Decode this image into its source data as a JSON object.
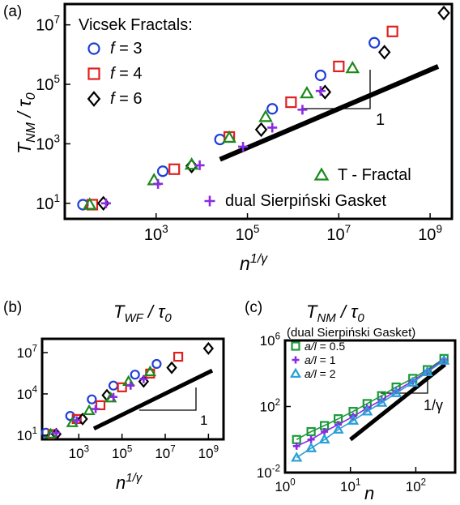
{
  "chart_data": [
    {
      "panel": "(a)",
      "type": "scatter",
      "xscale": "log",
      "yscale": "log",
      "xlim": [
        10,
        3000000000.0
      ],
      "ylim": [
        3,
        50000000.0
      ],
      "xlabel": "n^1/γ",
      "ylabel": "T_NM / τ_0",
      "xticks": [
        1000,
        100000,
        10000000,
        1000000000
      ],
      "xtick_labels": [
        "10^3",
        "10^5",
        "10^7",
        "10^9"
      ],
      "yticks": [
        10,
        1000,
        100000,
        10000000
      ],
      "ytick_labels": [
        "10^1",
        "10^3",
        "10^5",
        "10^7"
      ],
      "legend_title": "Vicsek Fractals:",
      "series": [
        {
          "name": "f = 3",
          "marker": "circle",
          "color": "#1f3fd6",
          "x": [
            25,
            1400,
            25000,
            350000,
            4000000,
            60000000
          ],
          "y": [
            9,
            120,
            1400,
            15000,
            200000,
            2500000
          ]
        },
        {
          "name": "f = 4",
          "marker": "square",
          "color": "#e02020",
          "x": [
            40,
            2500,
            40000,
            900000,
            10000000,
            150000000
          ],
          "y": [
            9,
            140,
            1700,
            25000,
            400000,
            6000000
          ]
        },
        {
          "name": "f = 6",
          "marker": "diamond",
          "color": "#000000",
          "x": [
            70,
            6000,
            200000,
            5000000,
            100000000,
            2000000000
          ],
          "y": [
            10,
            180,
            3000,
            55000,
            1200000,
            25000000
          ]
        },
        {
          "name": "T - Fractal",
          "marker": "triangle",
          "color": "#1a8a1a",
          "x": [
            35,
            900,
            6000,
            40000,
            250000,
            2000000,
            20000000
          ],
          "y": [
            9,
            60,
            200,
            1600,
            8000,
            50000,
            350000
          ]
        },
        {
          "name": "dual Sierpiński Gasket",
          "marker": "plus",
          "color": "#8a2be2",
          "x": [
            80,
            1100,
            9000,
            80000,
            350000,
            1600000,
            4000000
          ],
          "y": [
            10,
            45,
            190,
            800,
            3500,
            14000,
            60000
          ]
        }
      ],
      "guide_line": {
        "x": [
          25000,
          1500000000
        ],
        "y": [
          300,
          400000
        ]
      },
      "slope_label": "1"
    },
    {
      "panel": "(b)",
      "type": "scatter",
      "title": "T_WF / τ_0",
      "xscale": "log",
      "yscale": "log",
      "xlim": [
        20,
        5000000000.0
      ],
      "ylim": [
        5,
        100000000.0
      ],
      "xlabel": "n^1/γ",
      "xticks": [
        1000,
        100000,
        10000000,
        1000000000
      ],
      "xtick_labels": [
        "10^3",
        "10^5",
        "10^7",
        "10^9"
      ],
      "yticks": [
        10,
        10000,
        10000000
      ],
      "ytick_labels": [
        "10^1",
        "10^4",
        "10^7"
      ],
      "series": [
        {
          "name": "f = 3",
          "marker": "circle",
          "color": "#1f3fd6",
          "x": [
            30,
            400,
            4000,
            40000,
            400000,
            4000000
          ],
          "y": [
            15,
            250,
            4000,
            40000,
            250000,
            1500000
          ]
        },
        {
          "name": "f = 4",
          "marker": "square",
          "color": "#e02020",
          "x": [
            60,
            800,
            10000,
            100000,
            2000000,
            40000000
          ],
          "y": [
            12,
            150,
            1500,
            30000,
            300000,
            5000000
          ]
        },
        {
          "name": "f = 6",
          "marker": "diamond",
          "color": "#000000",
          "x": [
            90,
            1500,
            20000,
            1000000,
            20000000,
            1000000000
          ],
          "y": [
            12,
            150,
            8000,
            80000,
            800000,
            20000000
          ]
        },
        {
          "name": "T - Fractal",
          "marker": "triangle",
          "color": "#1a8a1a",
          "x": [
            50,
            500,
            3000,
            30000,
            200000,
            2000000
          ],
          "y": [
            12,
            80,
            600,
            5000,
            80000,
            400000
          ]
        },
        {
          "name": "dual Sierpiński Gasket",
          "marker": "plus",
          "color": "#8a2be2",
          "x": [
            90,
            800,
            6000,
            40000,
            250000,
            1000000
          ],
          "y": [
            15,
            120,
            800,
            6000,
            40000,
            120000
          ]
        }
      ],
      "guide_line": {
        "x": [
          5000,
          1500000000
        ],
        "y": [
          30,
          500000
        ]
      },
      "slope_label": "1"
    },
    {
      "panel": "(c)",
      "type": "line",
      "title": "T_NM / τ_0",
      "subtitle": "(dual Sierpiński Gasket)",
      "xscale": "log",
      "yscale": "log",
      "xlim": [
        1,
        400
      ],
      "ylim": [
        0.01,
        1000000
      ],
      "xlabel": "n",
      "xticks": [
        1,
        10,
        100
      ],
      "xtick_labels": [
        "10^0",
        "10^1",
        "10^2"
      ],
      "yticks": [
        0.01,
        100,
        1000000
      ],
      "ytick_labels": [
        "10^-2",
        "10^2",
        "10^6"
      ],
      "x": [
        1.5,
        2.5,
        4,
        6.5,
        11,
        18,
        30,
        50,
        90,
        150,
        270
      ],
      "series": [
        {
          "name": "a/l = 0.5",
          "marker": "square",
          "color": "#1a9a3a",
          "y": [
            1,
            3,
            7,
            18,
            50,
            150,
            450,
            1500,
            5000,
            17000,
            80000
          ]
        },
        {
          "name": "a/l = 1",
          "marker": "plus",
          "color": "#8a2be2",
          "y": [
            0.4,
            1,
            3,
            8,
            25,
            80,
            250,
            900,
            3500,
            14000,
            70000
          ]
        },
        {
          "name": "a/l = 2",
          "marker": "triangle",
          "color": "#2a9fd6",
          "y": [
            0.08,
            0.3,
            1,
            4,
            14,
            50,
            170,
            650,
            2800,
            12000,
            60000
          ]
        }
      ],
      "guide_line": {
        "x": [
          10,
          280
        ],
        "y": [
          1,
          35000
        ]
      },
      "slope_label": "1/γ"
    }
  ]
}
